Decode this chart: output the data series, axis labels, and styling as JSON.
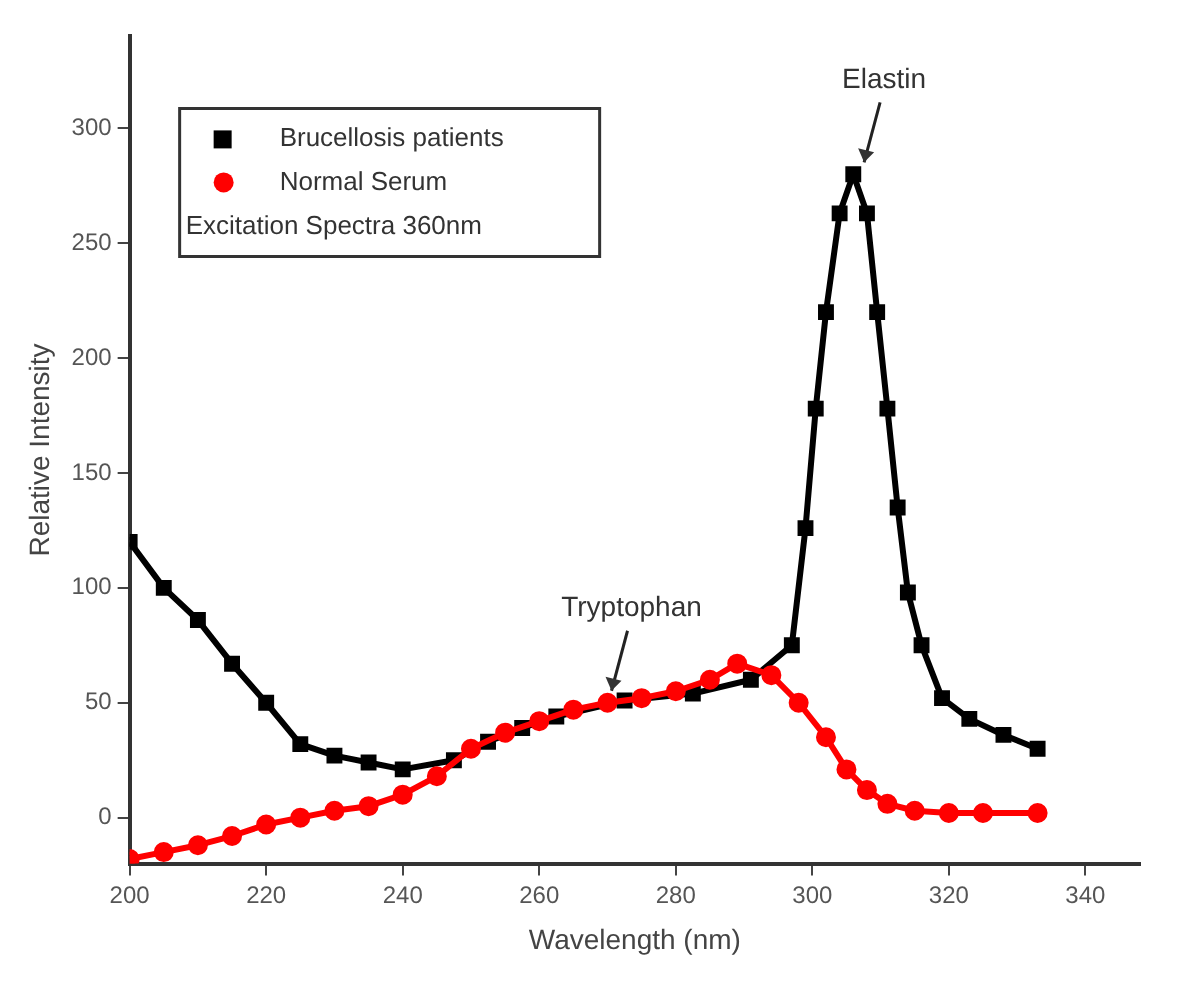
{
  "chart_data": {
    "type": "line",
    "xlabel": "Wavelength (nm)",
    "ylabel": "Relative Intensity",
    "legend_title": "Excitation Spectra 360nm",
    "xlim": [
      200,
      348
    ],
    "xticks": [
      200,
      220,
      240,
      260,
      280,
      300,
      320,
      340
    ],
    "ylim": [
      -20,
      340
    ],
    "yticks": [
      0,
      50,
      100,
      150,
      200,
      250,
      300
    ],
    "grid": false,
    "legend": "top left",
    "line_style": "solid",
    "series": [
      {
        "name": "Brucellosis patients",
        "color": "#000000",
        "marker": "square",
        "x": [
          200,
          205,
          210,
          215,
          220,
          225,
          230,
          235,
          240,
          247.5,
          252.5,
          257.5,
          262.5,
          272.5,
          282.5,
          291,
          297,
          299,
          300.5,
          302,
          304,
          306,
          308,
          309.5,
          311,
          312.5,
          314,
          316,
          319,
          323,
          328,
          333
        ],
        "values": [
          120,
          100,
          86,
          67,
          50,
          32,
          27,
          24,
          21,
          25,
          33,
          39,
          44,
          51,
          54,
          60,
          75,
          126,
          178,
          220,
          263,
          280,
          263,
          220,
          178,
          135,
          98,
          75,
          52,
          43,
          36,
          30
        ]
      },
      {
        "name": "Normal Serum",
        "color": "#ff0000",
        "marker": "circle",
        "x": [
          200,
          205,
          210,
          215,
          220,
          225,
          230,
          235,
          240,
          245,
          250,
          255,
          260,
          265,
          270,
          275,
          280,
          285,
          289,
          294,
          298,
          302,
          305,
          308,
          311,
          315,
          320,
          325,
          333
        ],
        "values": [
          -18,
          -15,
          -12,
          -8,
          -3,
          0,
          3,
          5,
          10,
          18,
          30,
          37,
          42,
          47,
          50,
          52,
          55,
          60,
          67,
          62,
          50,
          35,
          21,
          12,
          6,
          3,
          2,
          2,
          2
        ]
      }
    ],
    "annotations": [
      {
        "text": "Tryptophan",
        "x": 270,
        "y": 50
      },
      {
        "text": "Elastin",
        "x": 307,
        "y": 280
      }
    ]
  }
}
